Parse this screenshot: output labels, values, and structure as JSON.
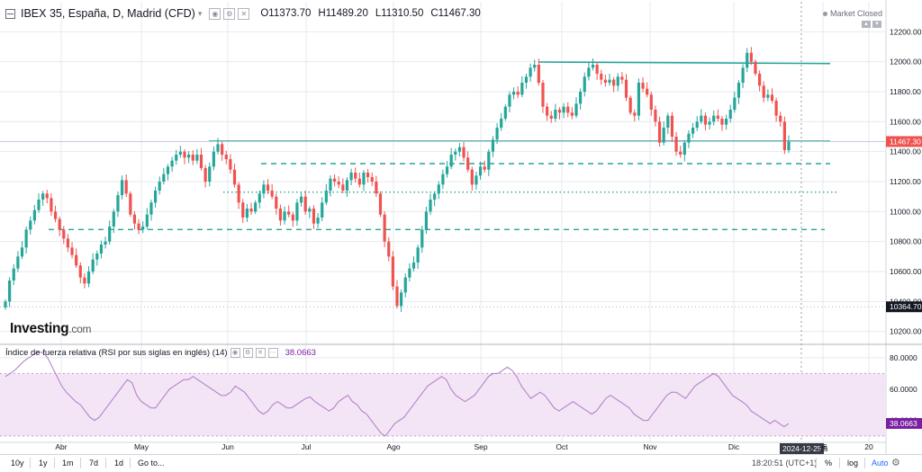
{
  "header": {
    "symbol": "IBEX 35, España, D, Madrid (CFD)",
    "open": "O11373.70",
    "high": "H11489.20",
    "low": "L11310.50",
    "close": "C11467.30",
    "market_status": "Market Closed"
  },
  "logo": {
    "brand": "Investing",
    "suffix": ".com"
  },
  "rsi_header": {
    "title": "Índice de fuerza relativa (RSI por sus siglas en inglés) (14)",
    "value": "38.0663"
  },
  "chart_data": [
    {
      "type": "candlestick",
      "title": "IBEX 35, España, D, Madrid (CFD)",
      "price_axis": {
        "ticks": [
          10200,
          10400,
          10600,
          10800,
          11000,
          11200,
          11400,
          11600,
          11800,
          12000,
          12200
        ],
        "tick_labels": [
          "10200.00",
          "10400.00",
          "10600.00",
          "10800.00",
          "11000.00",
          "11200.00",
          "11400.00",
          "11600.00",
          "11800.00",
          "12000.00",
          "12200.00"
        ],
        "range": [
          10120,
          12400
        ]
      },
      "time_axis": {
        "labels": [
          "Abr",
          "May",
          "Jun",
          "Jul",
          "Ago",
          "Sep",
          "Oct",
          "Nov",
          "Dic",
          "25",
          "20"
        ],
        "highlighted_date": "2024-12-25"
      },
      "last_price": {
        "value": 11467.3,
        "label": "11467.30"
      },
      "reference_price": {
        "value": 10364.7,
        "label": "10364.70"
      },
      "ohlc_closes": [
        10400,
        10540,
        10620,
        10700,
        10760,
        10880,
        10940,
        11010,
        11080,
        11120,
        11090,
        11000,
        10950,
        10880,
        10820,
        10760,
        10710,
        10640,
        10560,
        10520,
        10600,
        10680,
        10720,
        10780,
        10800,
        10900,
        11000,
        11110,
        11210,
        11120,
        10980,
        10920,
        10880,
        10900,
        10980,
        11060,
        11140,
        11200,
        11250,
        11300,
        11340,
        11380,
        11400,
        11360,
        11380,
        11340,
        11380,
        11290,
        11200,
        11300,
        11400,
        11450,
        11380,
        11350,
        11280,
        11180,
        11060,
        10960,
        11020,
        11000,
        11060,
        11120,
        11180,
        11140,
        11100,
        11020,
        10940,
        11000,
        10980,
        10940,
        11060,
        11100,
        11000,
        11020,
        10920,
        10960,
        11060,
        11140,
        11220,
        11200,
        11180,
        11140,
        11210,
        11260,
        11220,
        11180,
        11260,
        11230,
        11200,
        11120,
        10980,
        10800,
        10700,
        10500,
        10370,
        10460,
        10560,
        10620,
        10660,
        10760,
        10880,
        11000,
        11080,
        11120,
        11180,
        11250,
        11300,
        11380,
        11400,
        11430,
        11360,
        11280,
        11180,
        11240,
        11300,
        11280,
        11400,
        11480,
        11560,
        11620,
        11700,
        11780,
        11800,
        11780,
        11860,
        11900,
        11960,
        11980,
        11860,
        11700,
        11640,
        11620,
        11680,
        11660,
        11700,
        11660,
        11640,
        11720,
        11800,
        11900,
        11960,
        11980,
        11920,
        11880,
        11860,
        11880,
        11840,
        11900,
        11880,
        11760,
        11660,
        11640,
        11860,
        11820,
        11780,
        11680,
        11600,
        11460,
        11560,
        11640,
        11500,
        11400,
        11380,
        11460,
        11520,
        11560,
        11600,
        11640,
        11580,
        11600,
        11640,
        11620,
        11580,
        11620,
        11680,
        11760,
        11860,
        11960,
        12060,
        12000,
        11920,
        11840,
        11760,
        11780,
        11740,
        11640,
        11600,
        11410,
        11467.3
      ],
      "trend_lines": [
        {
          "name": "resistance-top",
          "from": 11998,
          "to": 11988,
          "style": "solid"
        },
        {
          "name": "support-mid",
          "from": 11470,
          "to": 11470,
          "style": "solid"
        }
      ],
      "support_levels": [
        {
          "value": 11320,
          "style": "dashed"
        },
        {
          "value": 11130,
          "style": "dotted"
        },
        {
          "value": 10880,
          "style": "dashed"
        }
      ]
    },
    {
      "type": "line",
      "title": "Índice de fuerza relativa (RSI por sus siglas en inglés) (14)",
      "value_axis": {
        "ticks": [
          40,
          60,
          80
        ],
        "tick_labels": [
          "40.0000",
          "60.0000",
          "80.0000"
        ],
        "range": [
          26,
          88
        ],
        "band": [
          30,
          70
        ]
      },
      "last_value": {
        "value": 38.0663,
        "label": "38.0663"
      },
      "rsi_values": [
        68,
        70,
        72,
        75,
        78,
        80,
        82,
        84,
        83,
        80,
        74,
        68,
        62,
        58,
        55,
        52,
        50,
        46,
        42,
        40,
        42,
        46,
        50,
        54,
        58,
        62,
        66,
        64,
        56,
        52,
        50,
        48,
        48,
        52,
        56,
        60,
        62,
        64,
        66,
        66,
        68,
        66,
        64,
        62,
        60,
        58,
        56,
        56,
        58,
        62,
        60,
        58,
        54,
        50,
        46,
        44,
        46,
        50,
        52,
        50,
        48,
        48,
        50,
        52,
        54,
        55,
        52,
        50,
        48,
        46,
        48,
        52,
        54,
        56,
        52,
        50,
        46,
        44,
        40,
        36,
        32,
        30,
        34,
        38,
        40,
        42,
        46,
        50,
        54,
        58,
        62,
        64,
        66,
        68,
        66,
        60,
        56,
        54,
        52,
        54,
        56,
        60,
        64,
        68,
        70,
        70,
        72,
        74,
        72,
        68,
        62,
        58,
        54,
        56,
        58,
        56,
        52,
        48,
        46,
        48,
        50,
        52,
        50,
        48,
        46,
        44,
        46,
        50,
        54,
        56,
        54,
        52,
        50,
        48,
        44,
        42,
        40,
        40,
        44,
        48,
        52,
        56,
        58,
        58,
        56,
        54,
        58,
        62,
        64,
        66,
        68,
        70,
        68,
        64,
        60,
        56,
        54,
        52,
        50,
        46,
        44,
        42,
        40,
        38,
        40,
        38,
        36,
        38
      ]
    }
  ],
  "now_label": {
    "date": "2024-12-25",
    "tail": "25"
  },
  "bottom_bar": {
    "ranges": [
      "10y",
      "1y",
      "1m",
      "7d",
      "1d"
    ],
    "goto": "Go to...",
    "clock": "18:20:51 (UTC+1)",
    "percent": "%",
    "log": "log",
    "auto": "Auto"
  },
  "colors": {
    "up": "#26a69a",
    "down": "#ef5350",
    "trend": "#26a69a",
    "rsi_line": "#b07cc6",
    "rsi_band": "#f3e5f5",
    "grid": "#e6e9ef",
    "last_price_bg": "#ef5350",
    "reference_bg": "#131722"
  }
}
